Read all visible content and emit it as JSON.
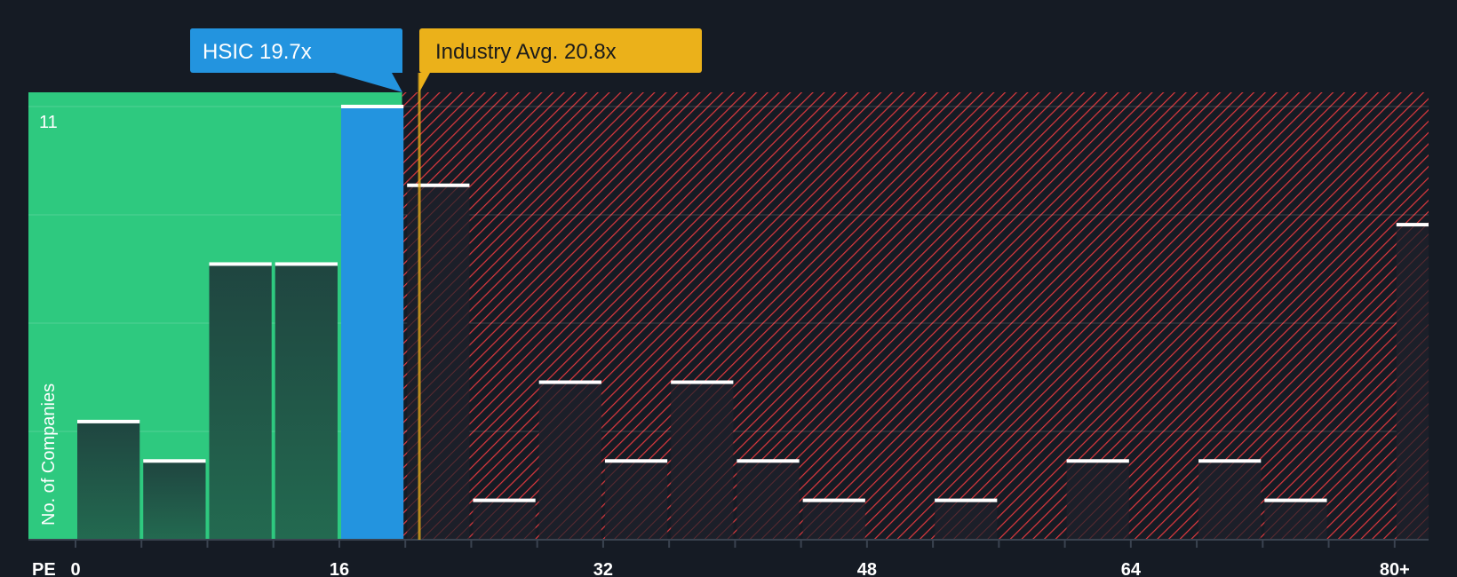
{
  "chart_data": {
    "type": "bar",
    "title": "",
    "xlabel": "PE",
    "ylabel": "No. of Companies",
    "x_ticks": [
      "0",
      "16",
      "32",
      "48",
      "64",
      "80+"
    ],
    "y_ticks": [
      "11"
    ],
    "ylim": [
      0,
      11
    ],
    "xlim": [
      0,
      82
    ],
    "bin_width": 4,
    "bins": [
      0,
      4,
      8,
      12,
      16,
      20,
      24,
      28,
      32,
      36,
      40,
      44,
      48,
      52,
      56,
      60,
      64,
      68,
      72,
      76,
      80
    ],
    "values": [
      3,
      2,
      7,
      7,
      11,
      9,
      1,
      4,
      2,
      4,
      2,
      1,
      0,
      1,
      0,
      2,
      0,
      2,
      1,
      0,
      8
    ],
    "highlight_bin": 16,
    "company": {
      "label": "HSIC 19.7x",
      "value": 19.7
    },
    "industry": {
      "label": "Industry Avg. 20.8x",
      "value": 20.8
    },
    "colors": {
      "background": "#151b24",
      "undervalued": "#2ec97f",
      "overvalued_hatch": "#e0393e",
      "company": "#2394df",
      "industry": "#ebb11a",
      "bar": "#1f4a40"
    }
  }
}
